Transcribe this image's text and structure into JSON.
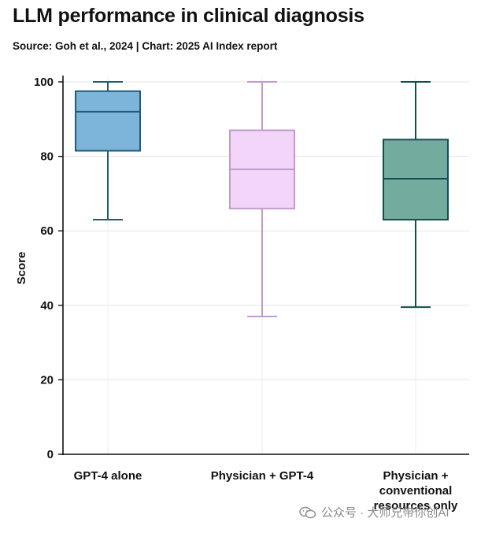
{
  "header": {
    "title": "LLM performance in clinical diagnosis",
    "subtitle": "Source: Goh et al., 2024 | Chart: 2025 AI Index report"
  },
  "chart_data": {
    "type": "boxplot",
    "title": "LLM performance in clinical diagnosis",
    "subtitle": "Source: Goh et al., 2024 | Chart: 2025 AI Index report",
    "xlabel": "",
    "ylabel": "Score",
    "ylim": [
      0,
      100
    ],
    "yticks": [
      0,
      20,
      40,
      60,
      80,
      100
    ],
    "grid": true,
    "series": [
      {
        "name": "GPT-4 alone",
        "label_lines": [
          "GPT-4 alone"
        ],
        "min": 63,
        "q1": 81.5,
        "median": 92,
        "q3": 97.5,
        "max": 100,
        "fill": "#7db4d9",
        "stroke": "#1f5c78"
      },
      {
        "name": "Physician + GPT-4",
        "label_lines": [
          "Physician + GPT-4"
        ],
        "min": 37,
        "q1": 66,
        "median": 76.5,
        "q3": 87,
        "max": 100,
        "fill": "#f2d5f8",
        "stroke": "#c39ad0"
      },
      {
        "name": "Physician + conventional resources only",
        "label_lines": [
          "Physician +",
          "conventional",
          "resources only"
        ],
        "min": 39.5,
        "q1": 63,
        "median": 74,
        "q3": 84.5,
        "max": 100,
        "fill": "#73ac9e",
        "stroke": "#124e50"
      }
    ]
  },
  "watermark": {
    "text": "公众号 · 大师兄带你创AI",
    "icon": "wechat-icon"
  }
}
